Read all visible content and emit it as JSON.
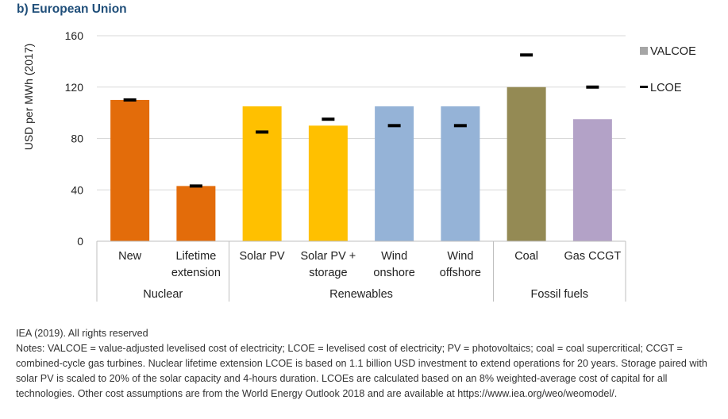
{
  "header": {
    "title": "b) European Union"
  },
  "notes": {
    "source": "IEA (2019). All rights reserved",
    "text": "Notes: VALCOE = value-adjusted levelised cost of electricity; LCOE = levelised cost of electricity; PV = photovoltaics; coal = coal supercritical; CCGT = combined-cycle gas turbines. Nuclear lifetime extension LCOE is based on 1.1 billion USD investment to extend operations for 20 years. Storage paired with solar PV is scaled to 20% of the solar capacity and 4-hours duration. LCOEs are calculated based on an 8% weighted-average cost of capital for all technologies. Other cost assumptions are from the World Energy Outlook 2018 and are available at https://www.iea.org/weo/weomodel/."
  },
  "chart_data": {
    "type": "bar",
    "ylabel": "USD per MWh (2017)",
    "ylim": [
      0,
      160
    ],
    "yticks": [
      0,
      40,
      80,
      120,
      160
    ],
    "grid": true,
    "legend_position": "right",
    "categories": [
      [
        "New"
      ],
      [
        "Lifetime",
        "extension"
      ],
      [
        "Solar PV"
      ],
      [
        "Solar PV +",
        "storage"
      ],
      [
        "Wind",
        "onshore"
      ],
      [
        "Wind",
        "offshore"
      ],
      [
        "Coal"
      ],
      [
        "Gas CCGT"
      ]
    ],
    "groups": [
      {
        "label": "Nuclear",
        "count": 2
      },
      {
        "label": "Renewables",
        "count": 4
      },
      {
        "label": "Fossil fuels",
        "count": 2
      }
    ],
    "series": [
      {
        "name": "VALCOE",
        "kind": "bar",
        "values": [
          110,
          43,
          105,
          90,
          105,
          105,
          120,
          95
        ]
      },
      {
        "name": "LCOE",
        "kind": "marker",
        "values": [
          110,
          43,
          85,
          95,
          90,
          90,
          145,
          120
        ]
      }
    ],
    "bar_colors": [
      "#e36c0a",
      "#e36c0a",
      "#ffc000",
      "#ffc000",
      "#95b3d7",
      "#95b3d7",
      "#948a54",
      "#b3a2c7"
    ],
    "legend_colors": {
      "VALCOE": "#a6a6a6",
      "LCOE": "#000000"
    }
  }
}
